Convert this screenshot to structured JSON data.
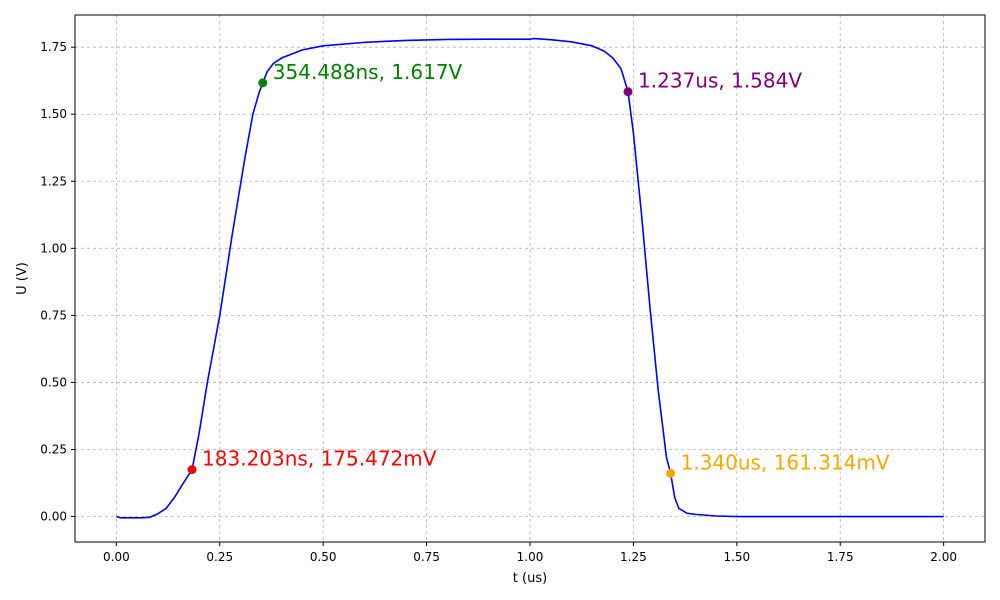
{
  "chart_data": {
    "type": "line",
    "title": "",
    "xlabel": "t (us)",
    "ylabel": "U (V)",
    "xlim": [
      -0.1,
      2.1
    ],
    "ylim": [
      -0.095,
      1.87
    ],
    "x_ticks": [
      0.0,
      0.25,
      0.5,
      0.75,
      1.0,
      1.25,
      1.5,
      1.75,
      2.0
    ],
    "x_tick_labels": [
      "0.00",
      "0.25",
      "0.50",
      "0.75",
      "1.00",
      "1.25",
      "1.50",
      "1.75",
      "2.00"
    ],
    "y_ticks": [
      0.0,
      0.25,
      0.5,
      0.75,
      1.0,
      1.25,
      1.5,
      1.75
    ],
    "y_tick_labels": [
      "0.00",
      "0.25",
      "0.50",
      "0.75",
      "1.00",
      "1.25",
      "1.50",
      "1.75"
    ],
    "grid": true,
    "series": [
      {
        "color": "#0000ff",
        "x": [
          0.0,
          0.01,
          0.03,
          0.06,
          0.08,
          0.1,
          0.12,
          0.14,
          0.16,
          0.183,
          0.2,
          0.22,
          0.25,
          0.28,
          0.31,
          0.33,
          0.345,
          0.354,
          0.365,
          0.38,
          0.4,
          0.45,
          0.5,
          0.6,
          0.7,
          0.8,
          0.9,
          1.0,
          1.01,
          1.05,
          1.1,
          1.15,
          1.18,
          1.2,
          1.22,
          1.237,
          1.25,
          1.27,
          1.29,
          1.31,
          1.33,
          1.34,
          1.35,
          1.36,
          1.38,
          1.4,
          1.45,
          1.5,
          1.75,
          2.0
        ],
        "y": [
          0.0,
          -0.005,
          -0.005,
          -0.005,
          -0.003,
          0.01,
          0.03,
          0.07,
          0.12,
          0.175,
          0.31,
          0.5,
          0.75,
          1.05,
          1.33,
          1.5,
          1.58,
          1.617,
          1.66,
          1.69,
          1.71,
          1.74,
          1.755,
          1.768,
          1.775,
          1.779,
          1.78,
          1.78,
          1.782,
          1.778,
          1.77,
          1.755,
          1.735,
          1.71,
          1.67,
          1.584,
          1.43,
          1.12,
          0.78,
          0.47,
          0.22,
          0.161,
          0.07,
          0.03,
          0.012,
          0.008,
          0.002,
          0.0,
          0.0,
          0.0
        ]
      }
    ],
    "markers": [
      {
        "x": 0.183,
        "y": 0.175,
        "color": "#ff0000",
        "label": "183.203ns, 175.472mV"
      },
      {
        "x": 0.354,
        "y": 1.617,
        "color": "#008000",
        "label": "354.488ns, 1.617V"
      },
      {
        "x": 1.237,
        "y": 1.584,
        "color": "#800080",
        "label": "1.237us, 1.584V"
      },
      {
        "x": 1.34,
        "y": 0.161,
        "color": "#ffa500",
        "label": "1.340us, 161.314mV"
      }
    ]
  }
}
